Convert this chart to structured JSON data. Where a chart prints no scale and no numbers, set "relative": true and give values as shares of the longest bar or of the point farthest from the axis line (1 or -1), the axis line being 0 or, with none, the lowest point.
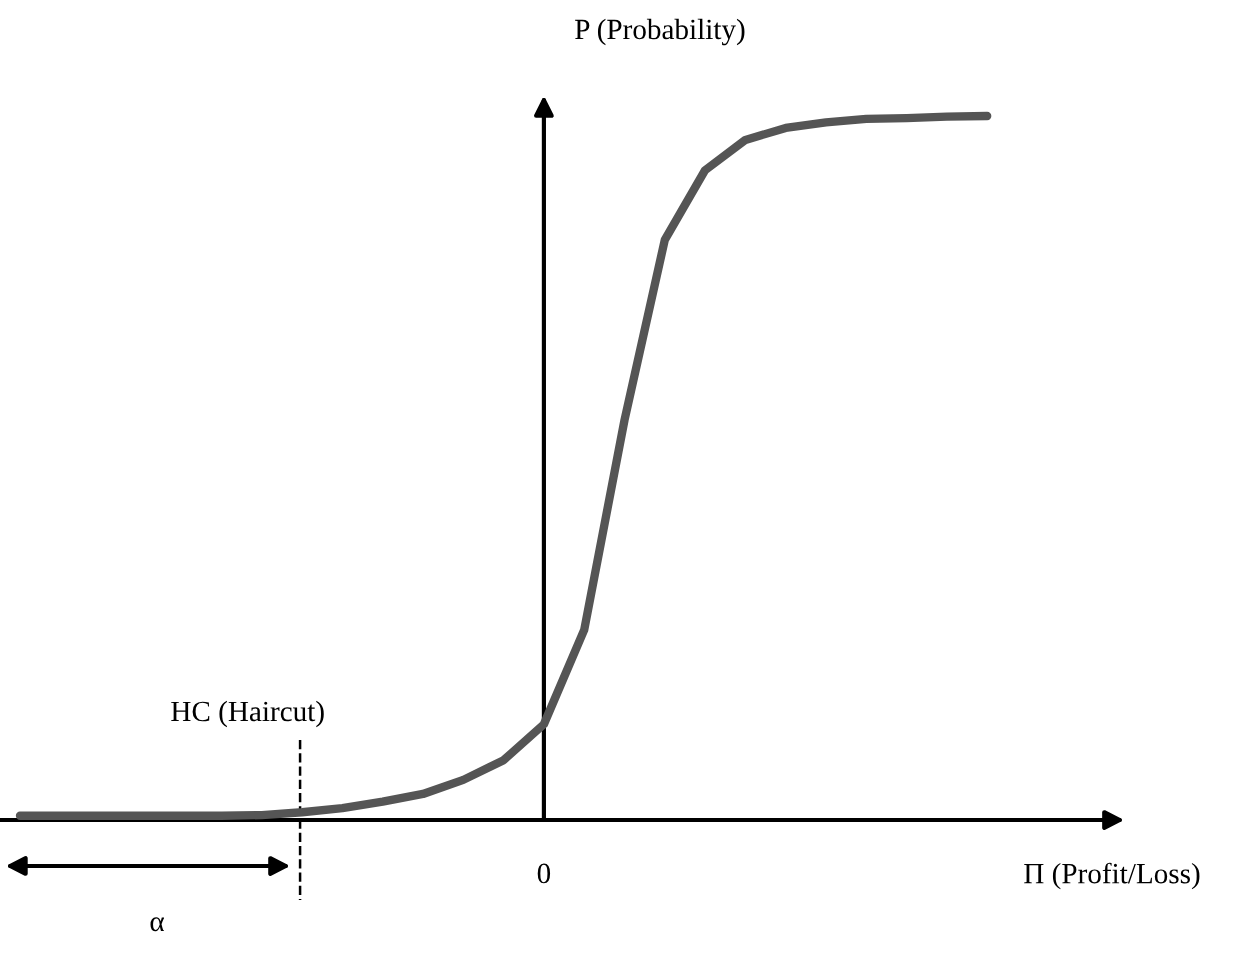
{
  "chart_data": {
    "type": "line",
    "relative": true,
    "xlabel": "Π (Profit/Loss)",
    "ylabel": "P (Probability)",
    "categories": [
      null,
      null,
      null,
      null,
      null,
      null,
      null,
      null,
      null,
      null,
      null,
      null,
      null,
      null,
      null,
      null,
      null,
      null,
      null,
      null,
      null,
      null,
      null,
      null,
      null
    ],
    "series": [
      {
        "color": "#555555",
        "values": [
          0.006,
          0.006,
          0.006,
          0.006,
          0.006,
          0.006,
          0.007,
          0.011,
          0.017,
          0.026,
          0.037,
          0.057,
          0.085,
          0.136,
          0.27,
          0.568,
          0.824,
          0.923,
          0.966,
          0.983,
          0.991,
          0.996,
          0.997,
          0.999,
          1
        ]
      }
    ],
    "annotations": [
      "HC (Haircut)",
      "0",
      "α"
    ],
    "marker": "none",
    "line_style": "solid",
    "legend": false
  }
}
